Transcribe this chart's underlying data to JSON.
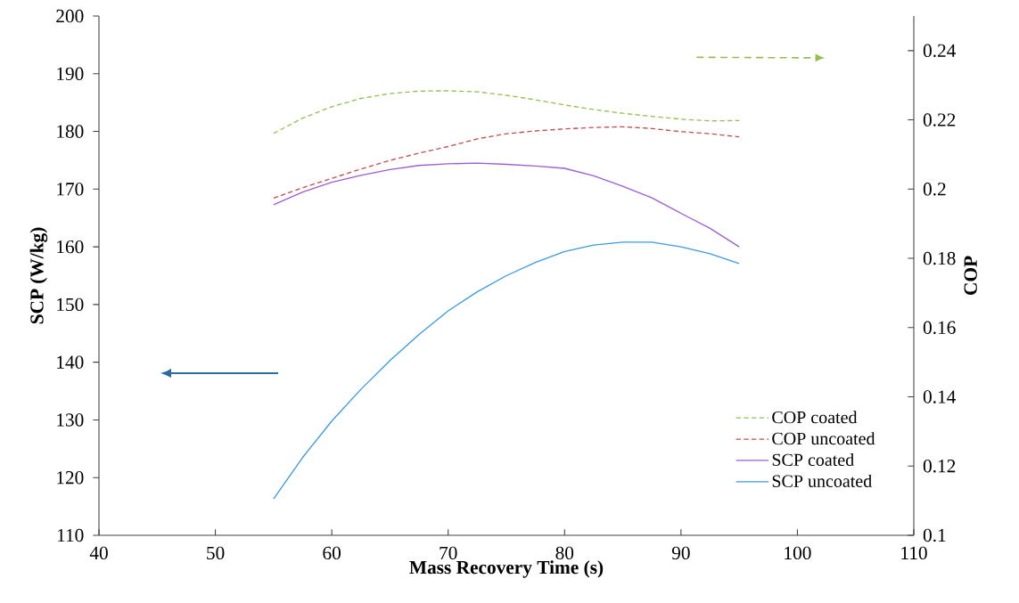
{
  "chart_data": {
    "type": "line",
    "xlabel": "Mass Recovery Time (s)",
    "ylabel": "SCP (W/kg)",
    "y2label": "COP",
    "x": [
      55,
      57.5,
      60,
      62.5,
      65,
      67.5,
      70,
      72.5,
      75,
      77.5,
      80,
      82.5,
      85,
      87.5,
      90,
      92.5,
      95
    ],
    "series": [
      {
        "name": "COP coated",
        "color": "#92c050",
        "axis": "y2",
        "line_style": "dashed",
        "values": [
          0.2161,
          0.2205,
          0.2238,
          0.2262,
          0.2276,
          0.2283,
          0.2284,
          0.2281,
          0.2271,
          0.2258,
          0.2243,
          0.223,
          0.2219,
          0.221,
          0.2202,
          0.2197,
          0.2198
        ]
      },
      {
        "name": "COP uncoated",
        "color": "#c0504d",
        "axis": "y2",
        "line_style": "dashed",
        "values": [
          0.1974,
          0.2004,
          0.2031,
          0.2058,
          0.2083,
          0.2104,
          0.2123,
          0.2145,
          0.216,
          0.2168,
          0.2174,
          0.2178,
          0.218,
          0.2175,
          0.2166,
          0.216,
          0.2151
        ]
      },
      {
        "name": "SCP coated",
        "color": "#9b5fd0",
        "axis": "y",
        "line_style": "solid",
        "values": [
          167.3,
          169.5,
          171.2,
          172.4,
          173.4,
          174.1,
          174.4,
          174.5,
          174.3,
          174.0,
          173.6,
          172.3,
          170.5,
          168.5,
          165.8,
          163.2,
          160.0
        ]
      },
      {
        "name": "SCP uncoated",
        "color": "#3d9ae0",
        "axis": "y",
        "line_style": "solid",
        "values": [
          116.3,
          123.5,
          129.8,
          135.3,
          140.3,
          144.8,
          148.9,
          152.2,
          155.0,
          157.3,
          159.2,
          160.3,
          160.8,
          160.8,
          160.0,
          158.8,
          157.1
        ]
      }
    ],
    "xlim": [
      40,
      110
    ],
    "xticks": [
      40,
      50,
      60,
      70,
      80,
      90,
      100,
      110
    ],
    "ylim": [
      110,
      200
    ],
    "yticks": [
      110,
      120,
      130,
      140,
      150,
      160,
      170,
      180,
      190,
      200
    ],
    "y2lim": [
      0.1,
      0.25
    ],
    "y2ticks": [
      0.1,
      0.12,
      0.14,
      0.16,
      0.18,
      0.2,
      0.22,
      0.24
    ],
    "legend": "bottom right"
  }
}
